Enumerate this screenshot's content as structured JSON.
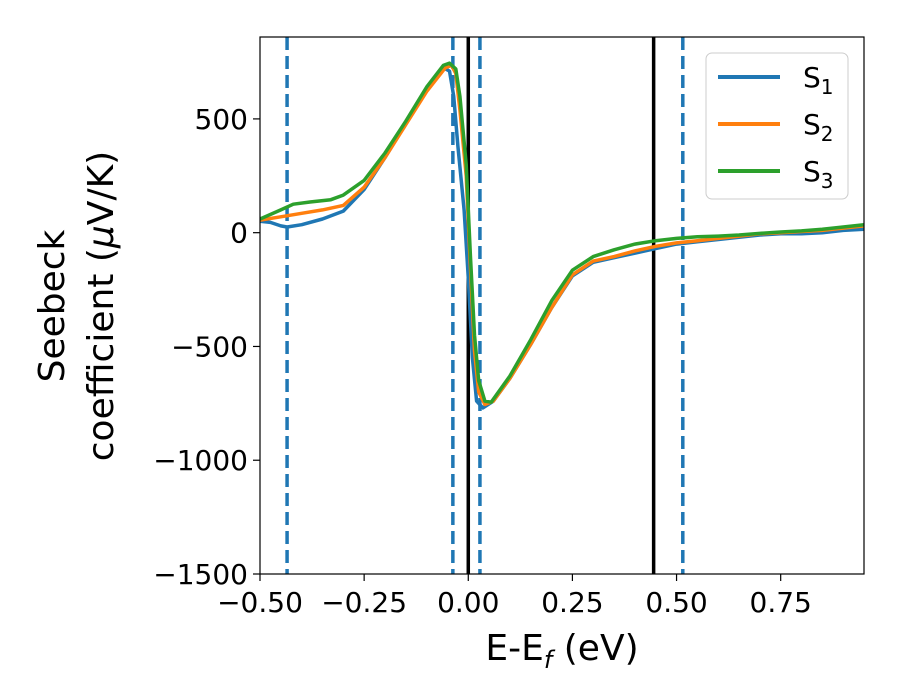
{
  "chart_data": {
    "type": "line",
    "xlabel": "E-E",
    "xlabel_sub": "f",
    "xlabel_unit": " (eV)",
    "ylabel_line1": "Seebeck",
    "ylabel_line2": "coefficient  (",
    "ylabel_mu": "μ",
    "ylabel_unit": "V/K)",
    "xlim": [
      -0.5,
      0.95
    ],
    "ylim": [
      -1500,
      860
    ],
    "x_ticks": [
      -0.5,
      -0.25,
      0.0,
      0.25,
      0.5,
      0.75
    ],
    "x_tick_labels": [
      "−0.50",
      "−0.25",
      "0.00",
      "0.25",
      "0.50",
      "0.75"
    ],
    "y_ticks": [
      -1500,
      -1000,
      -500,
      0,
      500
    ],
    "y_tick_labels": [
      "−1500",
      "−1000",
      "−500",
      "0",
      "500"
    ],
    "grid": false,
    "legend_position": "top-right",
    "series": [
      {
        "name": "S",
        "sub": "1",
        "color": "#1f77b4",
        "points": [
          [
            -0.5,
            50
          ],
          [
            -0.475,
            45
          ],
          [
            -0.45,
            30
          ],
          [
            -0.435,
            25
          ],
          [
            -0.4,
            35
          ],
          [
            -0.35,
            60
          ],
          [
            -0.3,
            95
          ],
          [
            -0.25,
            190
          ],
          [
            -0.2,
            330
          ],
          [
            -0.15,
            480
          ],
          [
            -0.1,
            630
          ],
          [
            -0.06,
            725
          ],
          [
            -0.045,
            710
          ],
          [
            -0.035,
            600
          ],
          [
            -0.025,
            380
          ],
          [
            -0.01,
            100
          ],
          [
            0.0,
            -200
          ],
          [
            0.01,
            -550
          ],
          [
            0.02,
            -740
          ],
          [
            0.035,
            -770
          ],
          [
            0.06,
            -740
          ],
          [
            0.1,
            -640
          ],
          [
            0.15,
            -490
          ],
          [
            0.2,
            -330
          ],
          [
            0.25,
            -190
          ],
          [
            0.3,
            -130
          ],
          [
            0.35,
            -110
          ],
          [
            0.4,
            -90
          ],
          [
            0.45,
            -70
          ],
          [
            0.5,
            -50
          ],
          [
            0.55,
            -40
          ],
          [
            0.6,
            -30
          ],
          [
            0.65,
            -20
          ],
          [
            0.7,
            -10
          ],
          [
            0.75,
            -5
          ],
          [
            0.8,
            -5
          ],
          [
            0.85,
            0
          ],
          [
            0.9,
            10
          ],
          [
            0.95,
            15
          ]
        ]
      },
      {
        "name": "S",
        "sub": "2",
        "color": "#ff7f0e",
        "points": [
          [
            -0.5,
            55
          ],
          [
            -0.45,
            70
          ],
          [
            -0.4,
            85
          ],
          [
            -0.35,
            100
          ],
          [
            -0.3,
            120
          ],
          [
            -0.25,
            200
          ],
          [
            -0.2,
            330
          ],
          [
            -0.15,
            475
          ],
          [
            -0.1,
            620
          ],
          [
            -0.055,
            725
          ],
          [
            -0.04,
            735
          ],
          [
            -0.03,
            700
          ],
          [
            -0.02,
            540
          ],
          [
            -0.005,
            250
          ],
          [
            0.005,
            -150
          ],
          [
            0.015,
            -520
          ],
          [
            0.025,
            -700
          ],
          [
            0.04,
            -755
          ],
          [
            0.06,
            -740
          ],
          [
            0.1,
            -640
          ],
          [
            0.15,
            -490
          ],
          [
            0.2,
            -330
          ],
          [
            0.25,
            -185
          ],
          [
            0.3,
            -125
          ],
          [
            0.35,
            -105
          ],
          [
            0.4,
            -80
          ],
          [
            0.45,
            -60
          ],
          [
            0.5,
            -45
          ],
          [
            0.55,
            -35
          ],
          [
            0.6,
            -25
          ],
          [
            0.65,
            -15
          ],
          [
            0.7,
            -5
          ],
          [
            0.75,
            0
          ],
          [
            0.8,
            5
          ],
          [
            0.85,
            10
          ],
          [
            0.9,
            20
          ],
          [
            0.95,
            30
          ]
        ]
      },
      {
        "name": "S",
        "sub": "3",
        "color": "#2ca02c",
        "points": [
          [
            -0.5,
            60
          ],
          [
            -0.45,
            100
          ],
          [
            -0.42,
            125
          ],
          [
            -0.38,
            135
          ],
          [
            -0.33,
            145
          ],
          [
            -0.3,
            165
          ],
          [
            -0.25,
            230
          ],
          [
            -0.2,
            350
          ],
          [
            -0.15,
            490
          ],
          [
            -0.1,
            640
          ],
          [
            -0.06,
            735
          ],
          [
            -0.045,
            745
          ],
          [
            -0.03,
            720
          ],
          [
            -0.02,
            600
          ],
          [
            -0.005,
            300
          ],
          [
            0.005,
            -100
          ],
          [
            0.015,
            -450
          ],
          [
            0.025,
            -650
          ],
          [
            0.04,
            -740
          ],
          [
            0.055,
            -745
          ],
          [
            0.1,
            -630
          ],
          [
            0.15,
            -470
          ],
          [
            0.2,
            -300
          ],
          [
            0.25,
            -165
          ],
          [
            0.3,
            -105
          ],
          [
            0.35,
            -75
          ],
          [
            0.4,
            -50
          ],
          [
            0.45,
            -35
          ],
          [
            0.5,
            -25
          ],
          [
            0.55,
            -18
          ],
          [
            0.6,
            -15
          ],
          [
            0.65,
            -10
          ],
          [
            0.7,
            -3
          ],
          [
            0.75,
            3
          ],
          [
            0.8,
            8
          ],
          [
            0.85,
            15
          ],
          [
            0.9,
            25
          ],
          [
            0.95,
            35
          ]
        ]
      }
    ],
    "vertical_lines": [
      {
        "x": -0.435,
        "style": "dashed",
        "color": "#1f77b4"
      },
      {
        "x": -0.037,
        "style": "dashed",
        "color": "#1f77b4"
      },
      {
        "x": 0.028,
        "style": "dashed",
        "color": "#1f77b4"
      },
      {
        "x": 0.515,
        "style": "dashed",
        "color": "#1f77b4"
      },
      {
        "x": 0.0,
        "style": "solid",
        "color": "#000000"
      },
      {
        "x": 0.445,
        "style": "solid",
        "color": "#000000"
      }
    ]
  }
}
